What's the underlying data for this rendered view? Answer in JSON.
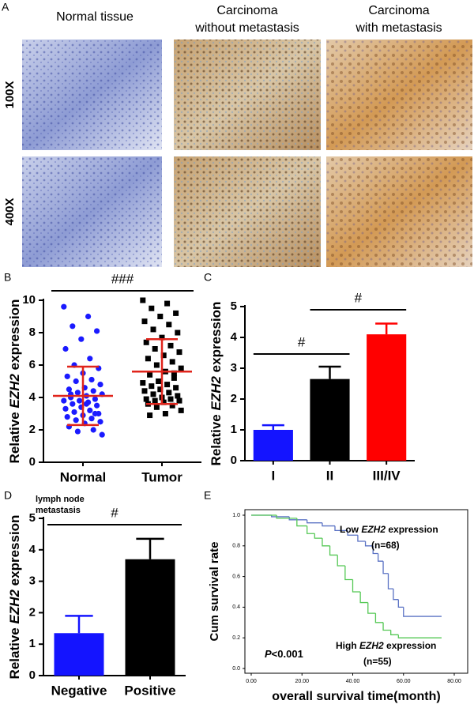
{
  "panel_a": {
    "label": "A",
    "columns": [
      [
        "Normal tissue"
      ],
      [
        "Carcinoma",
        "without metastasis"
      ],
      [
        "Carcinoma",
        "with metastasis"
      ]
    ],
    "rows": [
      "100X",
      "400X"
    ]
  },
  "chart_data": [
    {
      "panel": "B",
      "type": "scatter",
      "y_label": [
        "Relative ",
        "EZH2",
        " expression"
      ],
      "categories": [
        "Normal",
        "Tumor"
      ],
      "values": [
        [
          9.6,
          9.0,
          8.4,
          8.1,
          7.6,
          7.0,
          6.4,
          6.0,
          5.8,
          5.5,
          5.3,
          5.1,
          5.0,
          4.8,
          4.6,
          4.5,
          4.4,
          4.3,
          4.2,
          4.1,
          4.0,
          3.9,
          3.8,
          3.8,
          3.7,
          3.6,
          3.5,
          3.4,
          3.3,
          3.2,
          3.1,
          3.0,
          2.9,
          2.8,
          2.7,
          2.6,
          2.5,
          2.4,
          2.2,
          2.0,
          1.9,
          1.7,
          3.6,
          4.2,
          3.0
        ],
        [
          10.0,
          9.8,
          9.5,
          9.2,
          9.0,
          8.7,
          8.5,
          8.2,
          8.0,
          7.7,
          7.4,
          7.2,
          7.0,
          6.8,
          6.6,
          6.4,
          6.2,
          6.0,
          5.8,
          5.6,
          5.4,
          5.2,
          5.0,
          4.9,
          4.8,
          4.7,
          4.6,
          4.5,
          4.4,
          4.3,
          4.2,
          4.1,
          4.0,
          3.9,
          3.9,
          3.8,
          3.8,
          3.7,
          3.6,
          3.5,
          3.4,
          3.2,
          3.0,
          2.9,
          5.5
        ]
      ],
      "point_colors": [
        "#1a1aff",
        "#000000"
      ],
      "means": [
        4.1,
        5.6
      ],
      "sd": [
        1.8,
        2.0
      ],
      "mean_color": "#e0241b",
      "ylim": [
        0,
        10
      ],
      "yticks": [
        0,
        2,
        4,
        6,
        8,
        10
      ],
      "annotations": [
        "###"
      ]
    },
    {
      "panel": "C",
      "type": "bar",
      "y_label": [
        "Relative ",
        "EZH2",
        " expression"
      ],
      "categories": [
        "I",
        "II",
        "III/IV"
      ],
      "values": [
        1.0,
        2.65,
        4.1
      ],
      "errors": [
        0.15,
        0.4,
        0.35
      ],
      "colors": [
        "#1414ff",
        "#000000",
        "#ff0000"
      ],
      "ylim": [
        0,
        5
      ],
      "yticks": [
        0,
        1,
        2,
        3,
        4,
        5
      ],
      "annotations": [
        "#",
        "#"
      ]
    },
    {
      "panel": "D",
      "type": "bar",
      "subtitle": [
        "lymph node",
        "metastasis"
      ],
      "y_label": [
        "Relative ",
        "EZH2",
        " expression"
      ],
      "categories": [
        "Negative",
        "Positive"
      ],
      "values": [
        1.35,
        3.7
      ],
      "errors": [
        0.55,
        0.65
      ],
      "colors": [
        "#1414ff",
        "#000000"
      ],
      "ylim": [
        0,
        5
      ],
      "yticks": [
        0,
        1,
        2,
        3,
        4,
        5
      ],
      "annotations": [
        "#"
      ]
    },
    {
      "panel": "E",
      "type": "line",
      "step": true,
      "x_label": "overall survival time(month)",
      "y_label": "Cum survival rate",
      "xlim": [
        0,
        80
      ],
      "xticks": [
        {
          "value": 0,
          "label": "0.00"
        },
        {
          "value": 20,
          "label": "20.00"
        },
        {
          "value": 40,
          "label": "40.00"
        },
        {
          "value": 60,
          "label": "60.00"
        },
        {
          "value": 80,
          "label": "80.00"
        }
      ],
      "ylim": [
        0,
        1
      ],
      "yticks": [
        {
          "value": 0,
          "label": "0.0"
        },
        0.2,
        0.4,
        0.6,
        0.8,
        {
          "value": 1,
          "label": "1.0"
        }
      ],
      "series": [
        {
          "name": [
            "Low ",
            "EZH2",
            " expression"
          ],
          "n_label": "(n=68)",
          "color": "#5a72c4",
          "x": [
            0,
            8,
            15,
            22,
            28,
            33,
            38,
            42,
            45,
            48,
            50,
            52,
            54,
            56,
            58,
            60,
            75
          ],
          "values": [
            1,
            0.99,
            0.97,
            0.95,
            0.93,
            0.9,
            0.87,
            0.83,
            0.8,
            0.75,
            0.7,
            0.62,
            0.52,
            0.45,
            0.4,
            0.34,
            0.34
          ]
        },
        {
          "name": [
            "High ",
            "EZH2",
            " expression"
          ],
          "n_label": "(n=55)",
          "color": "#55c855",
          "x": [
            0,
            10,
            18,
            22,
            25,
            28,
            31,
            34,
            37,
            40,
            43,
            46,
            49,
            52,
            55,
            58,
            75
          ],
          "values": [
            1,
            0.98,
            0.93,
            0.88,
            0.85,
            0.8,
            0.74,
            0.67,
            0.58,
            0.5,
            0.43,
            0.36,
            0.3,
            0.25,
            0.22,
            0.2,
            0.2
          ]
        }
      ],
      "annotations": [
        [
          "P",
          "<0.001"
        ]
      ]
    }
  ]
}
